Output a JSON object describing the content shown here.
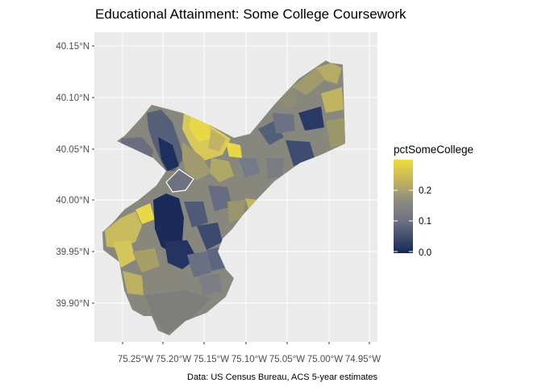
{
  "title": "Educational Attainment: Some College Coursework",
  "caption": "Data: US Census Bureau, ACS 5-year estimates",
  "legend": {
    "title": "pctSomeCollege",
    "labels": [
      "0.2",
      "0.1",
      "0.0"
    ],
    "colors": {
      "low": "#14285a",
      "mid": "#7d7d7d",
      "high": "#f0dc3c"
    }
  },
  "axes": {
    "x_ticks": [
      "75.25°W",
      "75.20°W",
      "75.15°W",
      "75.10°W",
      "75.05°W",
      "75.00°W",
      "74.95°W"
    ],
    "y_ticks": [
      "40.15°N",
      "40.10°N",
      "40.05°N",
      "40.00°N",
      "39.95°N",
      "39.90°N"
    ]
  },
  "colors": {
    "panel": "#ebebeb",
    "grid": "#ffffff"
  }
}
